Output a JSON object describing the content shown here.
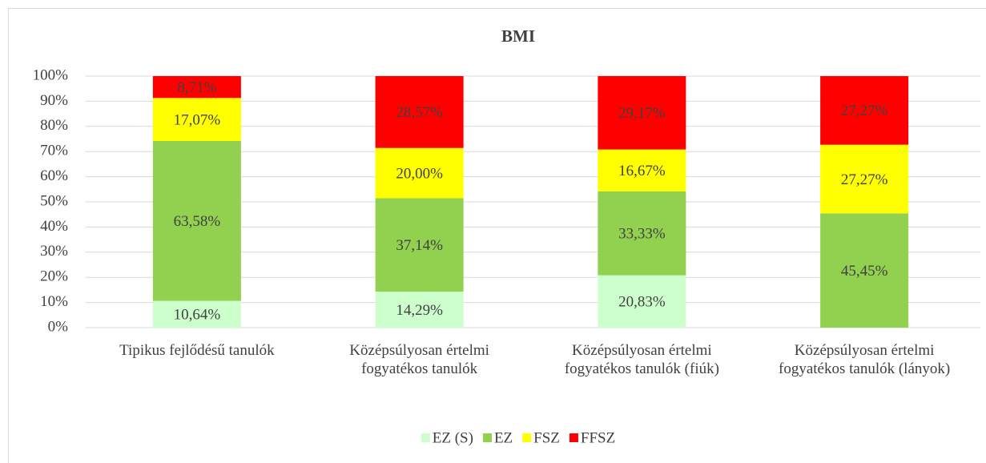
{
  "chart_data": {
    "type": "bar",
    "stacked": true,
    "title": "BMI",
    "categories": [
      "Tipikus fejlődésű tanulók",
      "Középsúlyosan értelmi fogyatékos tanulók",
      "Középsúlyosan értelmi fogyatékos tanulók (fiúk)",
      "Középsúlyosan értelmi fogyatékos tanulók (lányok)"
    ],
    "series": [
      {
        "name": "EZ (S)",
        "color": "#ccffcc",
        "values": [
          10.64,
          14.29,
          20.83,
          0
        ],
        "value_labels": [
          "10,64%",
          "14,29%",
          "20,83%",
          null
        ]
      },
      {
        "name": "EZ",
        "color": "#92d050",
        "values": [
          63.58,
          37.14,
          33.33,
          45.45
        ],
        "value_labels": [
          "63,58%",
          "37,14%",
          "33,33%",
          "45,45%"
        ]
      },
      {
        "name": "FSZ",
        "color": "#ffff00",
        "values": [
          17.07,
          20.0,
          16.67,
          27.27
        ],
        "value_labels": [
          "17,07%",
          "20,00%",
          "16,67%",
          "27,27%"
        ]
      },
      {
        "name": "FFSZ",
        "color": "#ff0000",
        "values": [
          8.71,
          28.57,
          29.17,
          27.27
        ],
        "value_labels": [
          "8,71%",
          "28,57%",
          "29,17%",
          "27,27%"
        ]
      }
    ],
    "ylim": [
      0,
      100
    ],
    "yticks": [
      {
        "value": 0,
        "label": "0%"
      },
      {
        "value": 10,
        "label": "10%"
      },
      {
        "value": 20,
        "label": "20%"
      },
      {
        "value": 30,
        "label": "30%"
      },
      {
        "value": 40,
        "label": "40%"
      },
      {
        "value": 50,
        "label": "50%"
      },
      {
        "value": 60,
        "label": "60%"
      },
      {
        "value": 70,
        "label": "70%"
      },
      {
        "value": 80,
        "label": "80%"
      },
      {
        "value": 90,
        "label": "90%"
      },
      {
        "value": 100,
        "label": "100%"
      }
    ],
    "grid": true,
    "legend": "bottom"
  }
}
